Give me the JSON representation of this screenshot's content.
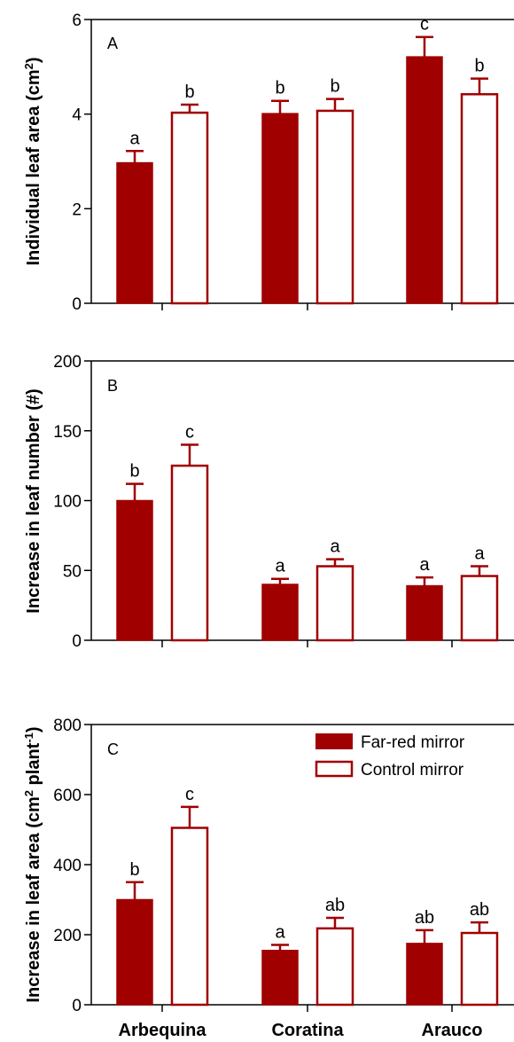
{
  "colors": {
    "far_red": "#a00000",
    "control_fill": "#ffffff",
    "control_stroke": "#a00000",
    "axis": "#000000"
  },
  "legend": {
    "far_red": "Far-red mirror",
    "control": "Control mirror",
    "placement": "top-right of panel C"
  },
  "chart_data": [
    {
      "type": "bar",
      "panel": "A",
      "ylabel_parts": [
        "Individual leaf area (cm",
        "2",
        ")"
      ],
      "ylim": [
        0,
        6
      ],
      "yticks": [
        "0",
        "2",
        "4",
        "6"
      ],
      "categories": [
        "Arbequina",
        "Coratina",
        "Arauco"
      ],
      "series": [
        {
          "name": "Far-red mirror",
          "values": [
            2.97,
            4.01,
            5.21
          ],
          "errors": [
            0.25,
            0.27,
            0.42
          ],
          "letters": [
            "a",
            "b",
            "c"
          ]
        },
        {
          "name": "Control mirror",
          "values": [
            4.03,
            4.07,
            4.42
          ],
          "errors": [
            0.17,
            0.25,
            0.33
          ],
          "letters": [
            "b",
            "b",
            "b"
          ]
        }
      ]
    },
    {
      "type": "bar",
      "panel": "B",
      "ylabel_parts": [
        "Increase in leaf number (#)"
      ],
      "ylim": [
        0,
        200
      ],
      "yticks": [
        "0",
        "50",
        "100",
        "150",
        "200"
      ],
      "categories": [
        "Arbequina",
        "Coratina",
        "Arauco"
      ],
      "series": [
        {
          "name": "Far-red mirror",
          "values": [
            100,
            40,
            39
          ],
          "errors": [
            12,
            4,
            6
          ],
          "letters": [
            "b",
            "a",
            "a"
          ]
        },
        {
          "name": "Control mirror",
          "values": [
            125,
            53,
            46
          ],
          "errors": [
            15,
            5,
            7
          ],
          "letters": [
            "c",
            "a",
            "a"
          ]
        }
      ]
    },
    {
      "type": "bar",
      "panel": "C",
      "ylabel_parts": [
        "Increase in leaf area (cm",
        "2",
        " plant",
        "-1",
        ")"
      ],
      "ylim": [
        0,
        800
      ],
      "yticks": [
        "0",
        "200",
        "400",
        "600",
        "800"
      ],
      "categories": [
        "Arbequina",
        "Coratina",
        "Arauco"
      ],
      "series": [
        {
          "name": "Far-red mirror",
          "values": [
            300,
            155,
            175
          ],
          "errors": [
            50,
            16,
            38
          ],
          "letters": [
            "b",
            "a",
            "ab"
          ]
        },
        {
          "name": "Control mirror",
          "values": [
            505,
            218,
            205
          ],
          "errors": [
            60,
            30,
            30
          ],
          "letters": [
            "c",
            "ab",
            "ab"
          ]
        }
      ]
    }
  ]
}
